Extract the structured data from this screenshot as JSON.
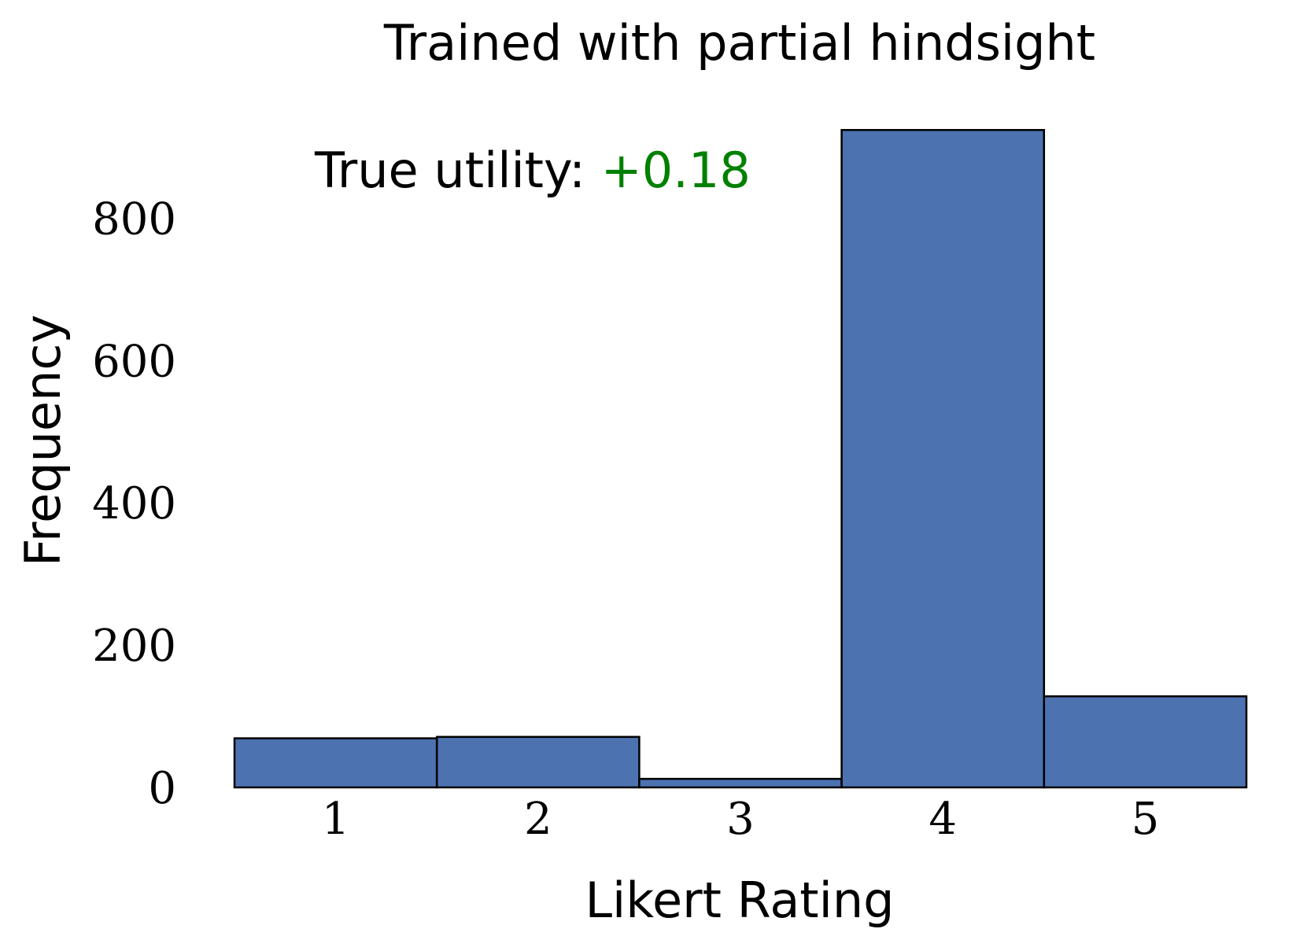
{
  "chart_data": {
    "type": "bar",
    "title": "Trained with partial hindsight",
    "xlabel": "Likert Rating",
    "ylabel": "Frequency",
    "categories": [
      "1",
      "2",
      "3",
      "4",
      "5"
    ],
    "values": [
      69,
      71,
      12,
      924,
      128
    ],
    "ylim": [
      0,
      960
    ],
    "yticks": [
      0,
      200,
      400,
      600,
      800
    ],
    "grid": false,
    "bar_color": "#4c72b0",
    "annotation": {
      "prefix": "True utility: ",
      "value": "+0.18",
      "value_color": "#008000"
    }
  }
}
